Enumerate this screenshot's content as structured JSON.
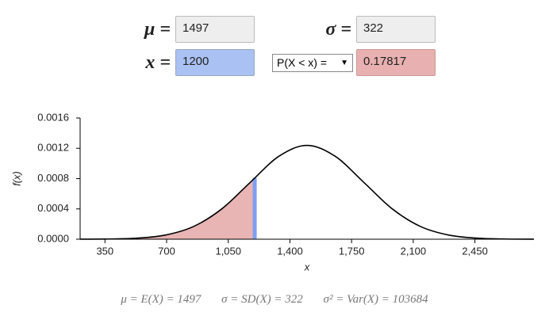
{
  "inputs": {
    "mu": {
      "label": "μ =",
      "value": "1497"
    },
    "sigma": {
      "label": "σ =",
      "value": "322"
    },
    "x": {
      "label": "x =",
      "value": "1200"
    },
    "operator": "P(X < x) =",
    "result": "0.17817"
  },
  "chart_data": {
    "type": "line",
    "x_label": "x",
    "y_label": "f(x)",
    "x": [
      209,
      370,
      531,
      692,
      853,
      1014,
      1175,
      1336,
      1497,
      1658,
      1819,
      1980,
      2141,
      2302,
      2463,
      2624,
      2785
    ],
    "values": [
      4e-07,
      2.7e-06,
      1.38e-05,
      5.44e-05,
      0.000168,
      0.000402,
      0.000751,
      0.001093,
      0.001239,
      0.001093,
      0.000751,
      0.000402,
      0.000168,
      5.44e-05,
      1.38e-05,
      2.7e-06,
      4e-07
    ],
    "color": "#000000",
    "highlight": {
      "x": 1200,
      "y": 0.00081,
      "color": "#7f9ff0",
      "fill": "#e8b4b4"
    },
    "xlim": [
      209,
      2785
    ],
    "ylim": [
      0,
      0.0016
    ],
    "xticks": [
      350,
      700,
      {
        "value": 1050,
        "label": "1,050"
      },
      {
        "value": 1400,
        "label": "1,400"
      },
      {
        "value": 1750,
        "label": "1,750"
      },
      {
        "value": 2100,
        "label": "2,100"
      },
      {
        "value": 2450,
        "label": "2,450"
      }
    ],
    "yticks": [
      {
        "value": 0,
        "label": "0.0000"
      },
      {
        "value": 0.0004,
        "label": "0.0004"
      },
      {
        "value": 0.0008,
        "label": "0.0008"
      },
      {
        "value": 0.0012,
        "label": "0.0012"
      },
      {
        "value": 0.0016,
        "label": "0.0016"
      }
    ]
  },
  "summary": [
    "μ = E(X) = 1497",
    "σ = SD(X) = 322",
    "σ² = Var(X) = 103684"
  ]
}
